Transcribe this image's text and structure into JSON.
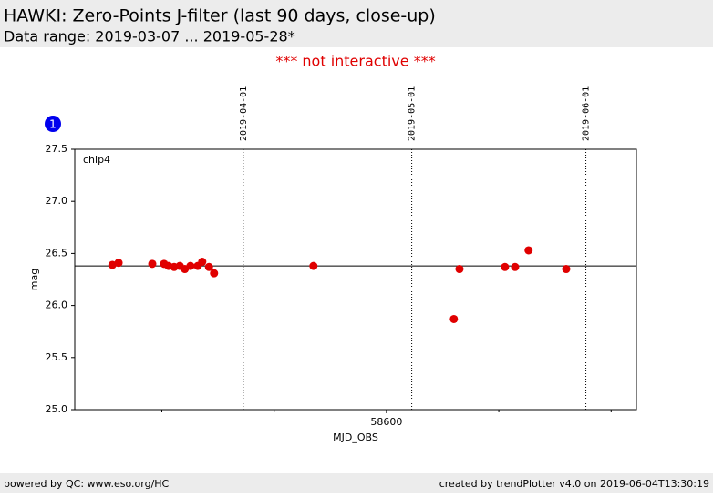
{
  "header": {
    "title": "HAWKI: Zero-Points J-filter (last 90 days, close-up)",
    "subtitle": "Data range: 2019-03-07 ... 2019-05-28*"
  },
  "notice": "*** not interactive ***",
  "badge": "1",
  "chart_data": {
    "type": "scatter",
    "annotation": "chip4",
    "y_label": "mag",
    "x_label": "MJD_OBS",
    "xlim": [
      58544.5,
      58644.5
    ],
    "xticks": [
      58600
    ],
    "x_minor_ticks": [
      58560,
      58580,
      58620,
      58640
    ],
    "ylim": [
      25.0,
      27.5
    ],
    "yticks": [
      {
        "value": 25,
        "label": "25.0"
      },
      {
        "value": 25.5,
        "label": "25.5"
      },
      {
        "value": 26,
        "label": "26.0"
      },
      {
        "value": 26.5,
        "label": "26.5"
      },
      {
        "value": 27,
        "label": "27.0"
      },
      {
        "value": 27.5,
        "label": "27.5"
      }
    ],
    "reference_line": 26.38,
    "date_lines": [
      {
        "value": 58574.5,
        "label": "2019-04-01"
      },
      {
        "value": 58604.5,
        "label": "2019-05-01"
      },
      {
        "value": 58635.5,
        "label": "2019-06-01"
      }
    ],
    "series": [
      {
        "color": "#e00000",
        "x": [
          58551.2,
          58552.3,
          58558.3,
          58560.4,
          58561.2,
          58562.2,
          58563.2,
          58564.1,
          58565.1,
          58566.4,
          58567.2,
          58568.4,
          58569.3,
          58587.0,
          58612.0,
          58613.0,
          58621.1,
          58622.9,
          58625.3,
          58632.0
        ],
        "values": [
          26.39,
          26.41,
          26.4,
          26.4,
          26.38,
          26.37,
          26.38,
          26.35,
          26.38,
          26.38,
          26.42,
          26.37,
          26.31,
          26.38,
          25.87,
          26.35,
          26.37,
          26.37,
          26.53,
          26.35
        ]
      }
    ]
  },
  "footer": {
    "left": "powered by QC: www.eso.org/HC",
    "right": "created by trendPlotter v4.0 on 2019-06-04T13:30:19"
  }
}
